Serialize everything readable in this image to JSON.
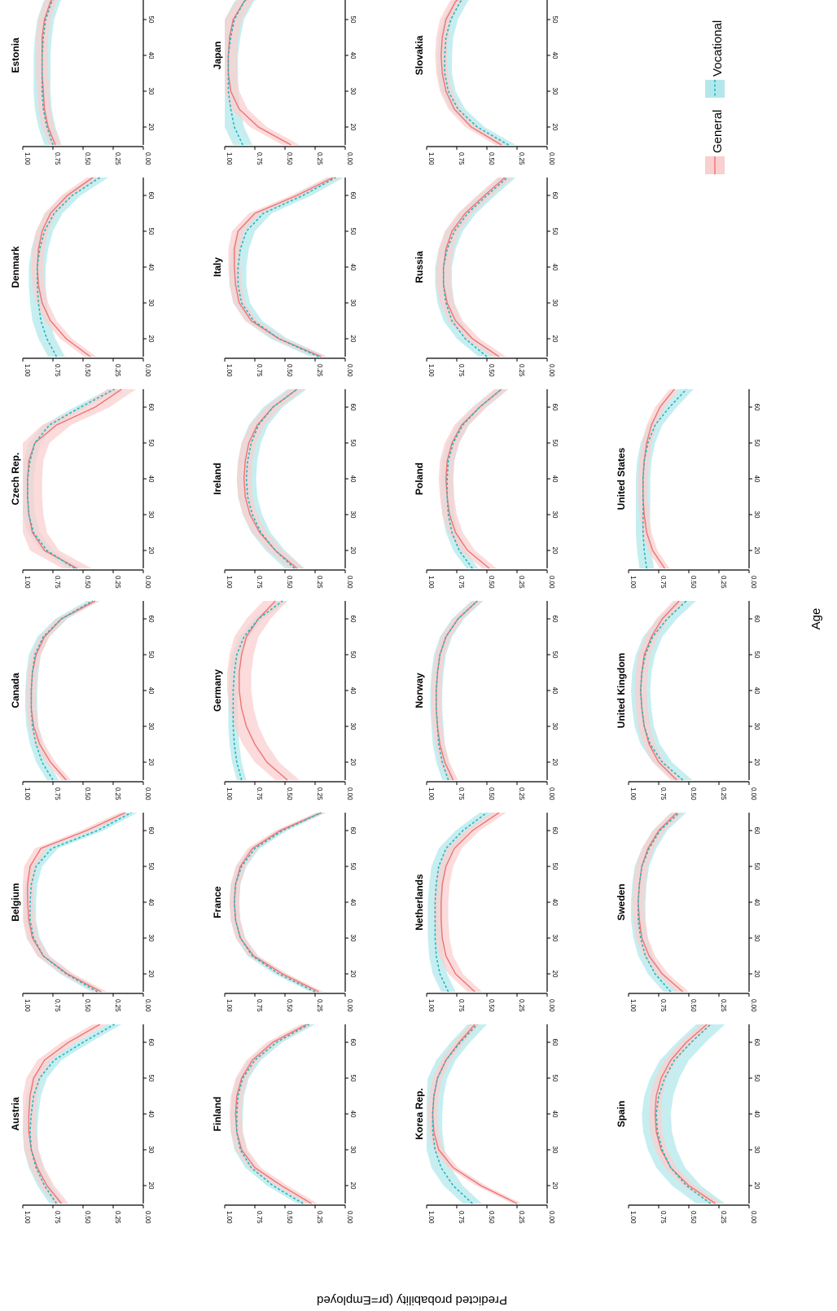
{
  "chart_data": {
    "type": "line",
    "orientation": "figure rotated 90 degrees clockwise",
    "xlabel": "Age",
    "ylabel": "Predicted probability (pr=Employed",
    "x": [
      15,
      20,
      25,
      30,
      35,
      40,
      45,
      50,
      55,
      60,
      65
    ],
    "xticks": [
      20,
      30,
      40,
      50,
      60
    ],
    "xlim": [
      15,
      65
    ],
    "yticks": [
      0.0,
      0.25,
      0.5,
      0.75,
      1.0
    ],
    "ylim": [
      0,
      1
    ],
    "legend": {
      "placement": "bottom-right",
      "entries": [
        {
          "label": "General",
          "style": "solid line with shaded band",
          "color": "#f07373",
          "band_color": "#f9cfcf"
        },
        {
          "label": "Vocational",
          "style": "dashed line with shaded band",
          "color": "#1fb8c0",
          "band_color": "#b3e8eb"
        }
      ]
    },
    "panels": [
      {
        "title": "Austria",
        "general": {
          "values": [
            0.68,
            0.8,
            0.88,
            0.93,
            0.95,
            0.95,
            0.94,
            0.91,
            0.82,
            0.62,
            0.36
          ],
          "band": 0.06
        },
        "vocational": {
          "values": [
            0.72,
            0.82,
            0.89,
            0.93,
            0.94,
            0.93,
            0.91,
            0.86,
            0.74,
            0.5,
            0.24
          ],
          "band": 0.06
        }
      },
      {
        "title": "Belgium",
        "general": {
          "values": [
            0.35,
            0.63,
            0.83,
            0.92,
            0.95,
            0.96,
            0.96,
            0.94,
            0.85,
            0.47,
            0.15
          ],
          "band": 0.05
        },
        "vocational": {
          "values": [
            0.38,
            0.64,
            0.83,
            0.91,
            0.94,
            0.94,
            0.93,
            0.89,
            0.76,
            0.38,
            0.1
          ],
          "band": 0.05
        }
      },
      {
        "title": "Canada",
        "general": {
          "values": [
            0.64,
            0.77,
            0.86,
            0.91,
            0.93,
            0.93,
            0.92,
            0.89,
            0.82,
            0.68,
            0.4
          ],
          "band": 0.04
        },
        "vocational": {
          "values": [
            0.75,
            0.84,
            0.89,
            0.92,
            0.93,
            0.93,
            0.92,
            0.9,
            0.83,
            0.68,
            0.42
          ],
          "band": 0.05
        }
      },
      {
        "title": "Czech Rep.",
        "general": {
          "values": [
            0.55,
            0.82,
            0.92,
            0.95,
            0.96,
            0.96,
            0.95,
            0.9,
            0.72,
            0.4,
            0.18
          ],
          "band": 0.12
        },
        "vocational": {
          "values": [
            0.57,
            0.8,
            0.91,
            0.95,
            0.96,
            0.96,
            0.94,
            0.9,
            0.78,
            0.52,
            0.24
          ],
          "band": 0.05
        }
      },
      {
        "title": "Denmark",
        "general": {
          "values": [
            0.44,
            0.64,
            0.77,
            0.84,
            0.87,
            0.88,
            0.87,
            0.84,
            0.77,
            0.63,
            0.42
          ],
          "band": 0.05
        },
        "vocational": {
          "values": [
            0.72,
            0.8,
            0.85,
            0.87,
            0.88,
            0.88,
            0.86,
            0.82,
            0.74,
            0.59,
            0.36
          ],
          "band": 0.07
        }
      },
      {
        "title": "Estonia",
        "general": {
          "values": [
            0.73,
            0.79,
            0.82,
            0.83,
            0.84,
            0.84,
            0.84,
            0.82,
            0.77,
            0.65,
            0.43
          ],
          "band": 0.05
        },
        "vocational": {
          "values": [
            0.75,
            0.8,
            0.83,
            0.84,
            0.84,
            0.84,
            0.83,
            0.81,
            0.76,
            0.64,
            0.43
          ],
          "band": 0.07
        }
      },
      {
        "title": "Finland",
        "general": {
          "values": [
            0.28,
            0.53,
            0.75,
            0.86,
            0.9,
            0.91,
            0.9,
            0.86,
            0.77,
            0.6,
            0.32
          ],
          "band": 0.05
        },
        "vocational": {
          "values": [
            0.35,
            0.6,
            0.78,
            0.87,
            0.9,
            0.9,
            0.89,
            0.85,
            0.75,
            0.57,
            0.3
          ],
          "band": 0.05
        }
      },
      {
        "title": "France",
        "general": {
          "values": [
            0.22,
            0.52,
            0.76,
            0.87,
            0.91,
            0.92,
            0.91,
            0.87,
            0.77,
            0.54,
            0.2
          ],
          "band": 0.04
        },
        "vocational": {
          "values": [
            0.25,
            0.55,
            0.77,
            0.87,
            0.91,
            0.92,
            0.91,
            0.86,
            0.75,
            0.52,
            0.2
          ],
          "band": 0.04
        }
      },
      {
        "title": "Germany",
        "general": {
          "values": [
            0.48,
            0.65,
            0.75,
            0.82,
            0.86,
            0.88,
            0.88,
            0.86,
            0.82,
            0.72,
            0.58
          ],
          "band": 0.1
        },
        "vocational": {
          "values": [
            0.86,
            0.9,
            0.92,
            0.93,
            0.93,
            0.93,
            0.92,
            0.9,
            0.84,
            0.72,
            0.52
          ],
          "band": 0.04
        }
      },
      {
        "title": "Ireland",
        "general": {
          "values": [
            0.4,
            0.58,
            0.71,
            0.79,
            0.83,
            0.84,
            0.83,
            0.8,
            0.73,
            0.6,
            0.4
          ],
          "band": 0.06
        },
        "vocational": {
          "values": [
            0.42,
            0.58,
            0.7,
            0.77,
            0.81,
            0.82,
            0.81,
            0.78,
            0.72,
            0.6,
            0.4
          ],
          "band": 0.08
        }
      },
      {
        "title": "Italy",
        "general": {
          "values": [
            0.2,
            0.55,
            0.78,
            0.88,
            0.91,
            0.92,
            0.92,
            0.89,
            0.75,
            0.4,
            0.1
          ],
          "band": 0.05
        },
        "vocational": {
          "values": [
            0.22,
            0.55,
            0.76,
            0.86,
            0.89,
            0.89,
            0.87,
            0.82,
            0.68,
            0.35,
            0.08
          ],
          "band": 0.07
        }
      },
      {
        "title": "Japan",
        "general": {
          "values": [
            0.45,
            0.72,
            0.88,
            0.95,
            0.97,
            0.97,
            0.96,
            0.93,
            0.84,
            0.65,
            0.4
          ],
          "band": 0.07
        },
        "vocational": {
          "values": [
            0.85,
            0.92,
            0.95,
            0.97,
            0.97,
            0.97,
            0.95,
            0.92,
            0.84,
            0.66,
            0.4
          ],
          "band": 0.08
        }
      },
      {
        "title": "Korea Rep.",
        "general": {
          "values": [
            0.25,
            0.55,
            0.78,
            0.9,
            0.94,
            0.95,
            0.94,
            0.91,
            0.84,
            0.73,
            0.6
          ],
          "band": 0.04
        },
        "vocational": {
          "values": [
            0.62,
            0.78,
            0.88,
            0.93,
            0.95,
            0.95,
            0.94,
            0.91,
            0.84,
            0.72,
            0.58
          ],
          "band": 0.08
        }
      },
      {
        "title": "Netherlands",
        "general": {
          "values": [
            0.6,
            0.76,
            0.84,
            0.87,
            0.88,
            0.88,
            0.87,
            0.84,
            0.77,
            0.62,
            0.4
          ],
          "band": 0.06
        },
        "vocational": {
          "values": [
            0.82,
            0.89,
            0.92,
            0.93,
            0.93,
            0.93,
            0.92,
            0.9,
            0.84,
            0.7,
            0.5
          ],
          "band": 0.06
        }
      },
      {
        "title": "Norway",
        "general": {
          "values": [
            0.78,
            0.85,
            0.89,
            0.91,
            0.92,
            0.92,
            0.91,
            0.89,
            0.84,
            0.74,
            0.58
          ],
          "band": 0.04
        },
        "vocational": {
          "values": [
            0.82,
            0.87,
            0.9,
            0.91,
            0.92,
            0.92,
            0.91,
            0.89,
            0.84,
            0.74,
            0.58
          ],
          "band": 0.05
        }
      },
      {
        "title": "Poland",
        "general": {
          "values": [
            0.48,
            0.66,
            0.76,
            0.81,
            0.83,
            0.84,
            0.83,
            0.79,
            0.71,
            0.56,
            0.38
          ],
          "band": 0.06
        },
        "vocational": {
          "values": [
            0.62,
            0.73,
            0.79,
            0.82,
            0.83,
            0.83,
            0.82,
            0.78,
            0.7,
            0.56,
            0.38
          ],
          "band": 0.05
        }
      },
      {
        "title": "Russia",
        "general": {
          "values": [
            0.4,
            0.62,
            0.76,
            0.83,
            0.86,
            0.86,
            0.84,
            0.79,
            0.68,
            0.52,
            0.35
          ],
          "band": 0.06
        },
        "vocational": {
          "values": [
            0.5,
            0.68,
            0.79,
            0.84,
            0.86,
            0.86,
            0.83,
            0.77,
            0.66,
            0.5,
            0.33
          ],
          "band": 0.07
        }
      },
      {
        "title": "Slovakia",
        "general": {
          "values": [
            0.38,
            0.63,
            0.77,
            0.84,
            0.87,
            0.88,
            0.87,
            0.84,
            0.76,
            0.6,
            0.4
          ],
          "band": 0.05
        },
        "vocational": {
          "values": [
            0.32,
            0.58,
            0.74,
            0.82,
            0.85,
            0.85,
            0.84,
            0.8,
            0.72,
            0.57,
            0.38
          ],
          "band": 0.06
        }
      },
      {
        "title": "Spain",
        "general": {
          "values": [
            0.28,
            0.5,
            0.65,
            0.73,
            0.77,
            0.78,
            0.77,
            0.73,
            0.65,
            0.52,
            0.35
          ],
          "band": 0.05
        },
        "vocational": {
          "values": [
            0.32,
            0.52,
            0.65,
            0.72,
            0.76,
            0.77,
            0.75,
            0.7,
            0.62,
            0.48,
            0.32
          ],
          "band": 0.12
        }
      },
      {
        "title": "Sweden",
        "general": {
          "values": [
            0.55,
            0.72,
            0.83,
            0.89,
            0.91,
            0.92,
            0.91,
            0.89,
            0.84,
            0.75,
            0.6
          ],
          "band": 0.05
        },
        "vocational": {
          "values": [
            0.65,
            0.78,
            0.86,
            0.9,
            0.92,
            0.92,
            0.91,
            0.89,
            0.83,
            0.74,
            0.58
          ],
          "band": 0.06
        }
      },
      {
        "title": "United Kingdom",
        "general": {
          "values": [
            0.6,
            0.75,
            0.83,
            0.87,
            0.89,
            0.9,
            0.89,
            0.87,
            0.81,
            0.72,
            0.58
          ],
          "band": 0.05
        },
        "vocational": {
          "values": [
            0.55,
            0.72,
            0.82,
            0.87,
            0.89,
            0.9,
            0.89,
            0.86,
            0.8,
            0.68,
            0.52
          ],
          "band": 0.08
        }
      },
      {
        "title": "United States",
        "general": {
          "values": [
            0.7,
            0.8,
            0.85,
            0.87,
            0.88,
            0.88,
            0.87,
            0.85,
            0.81,
            0.74,
            0.62
          ],
          "band": 0.04
        },
        "vocational": {
          "values": [
            0.85,
            0.87,
            0.88,
            0.88,
            0.88,
            0.88,
            0.87,
            0.84,
            0.78,
            0.66,
            0.52
          ],
          "band": 0.06
        }
      }
    ]
  }
}
